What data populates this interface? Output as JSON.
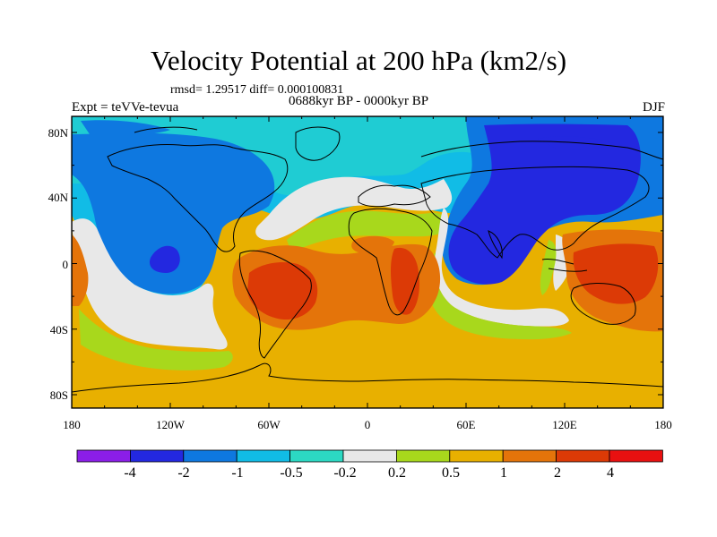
{
  "header": {
    "title": "Velocity Potential at 200 hPa (km2/s)",
    "stats": "rmsd= 1.29517 diff= 0.000100831",
    "subtitle": "0688kyr BP - 0000kyr BP",
    "experiment": "Expt = teVVe-tevua",
    "season": "DJF"
  },
  "axes": {
    "lat_labels": [
      "80N",
      "40N",
      "0",
      "40S",
      "80S"
    ],
    "lon_labels": [
      "180",
      "120W",
      "60W",
      "0",
      "60E",
      "120E",
      "180"
    ]
  },
  "colorbar": {
    "labels": [
      "-4",
      "-2",
      "-1",
      "-0.5",
      "-0.2",
      "0.2",
      "0.5",
      "1",
      "2",
      "4"
    ],
    "colors": [
      "#8b1ee8",
      "#2328e0",
      "#0e78e0",
      "#11bce6",
      "#2cd9c3",
      "#e8e8e8",
      "#a8d81c",
      "#e8b000",
      "#e4740a",
      "#dc3a06",
      "#e81010"
    ]
  },
  "palette": {
    "background": "#e8b000",
    "levels": {
      "lvl_neg4": "#8b1ee8",
      "lvl_neg2": "#2328e0",
      "lvl_neg1": "#0e78e0",
      "lvl_neg05": "#11bce6",
      "lvl_neg02": "#2cd9c3",
      "lvl_zero": "#e8e8e8",
      "lvl_02": "#a8d81c",
      "lvl_05": "#e8b000",
      "lvl_1": "#e4740a",
      "lvl_2": "#dc3a06",
      "lvl_4": "#e81010"
    }
  }
}
